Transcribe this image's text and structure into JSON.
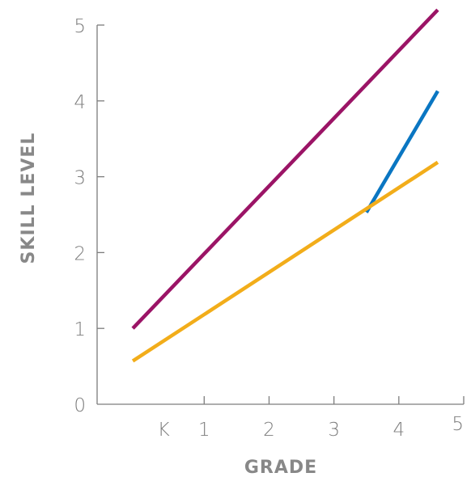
{
  "chart_data": {
    "type": "line",
    "xlabel": "GRADE",
    "ylabel": "SKILL LEVEL",
    "categories": [
      "K",
      "1",
      "2",
      "3",
      "4",
      "5"
    ],
    "x_axis_tick_labels": [
      "K",
      "1",
      "2",
      "3",
      "4",
      "5"
    ],
    "y_axis_tick_labels": [
      "0",
      "1",
      "2",
      "3",
      "4",
      "5"
    ],
    "xlim": [
      -0.65,
      5
    ],
    "ylim": [
      0,
      5
    ],
    "grid": false,
    "series": [
      {
        "color": "#9b1466",
        "points": [
          [
            -0.1,
            1.0
          ],
          [
            4.6,
            5.2
          ]
        ]
      },
      {
        "color": "#0a76c2",
        "points": [
          [
            3.5,
            2.53
          ],
          [
            4.6,
            4.13
          ]
        ]
      },
      {
        "color": "#f2ad1a",
        "points": [
          [
            -0.1,
            0.57
          ],
          [
            4.6,
            3.19
          ]
        ]
      }
    ]
  }
}
